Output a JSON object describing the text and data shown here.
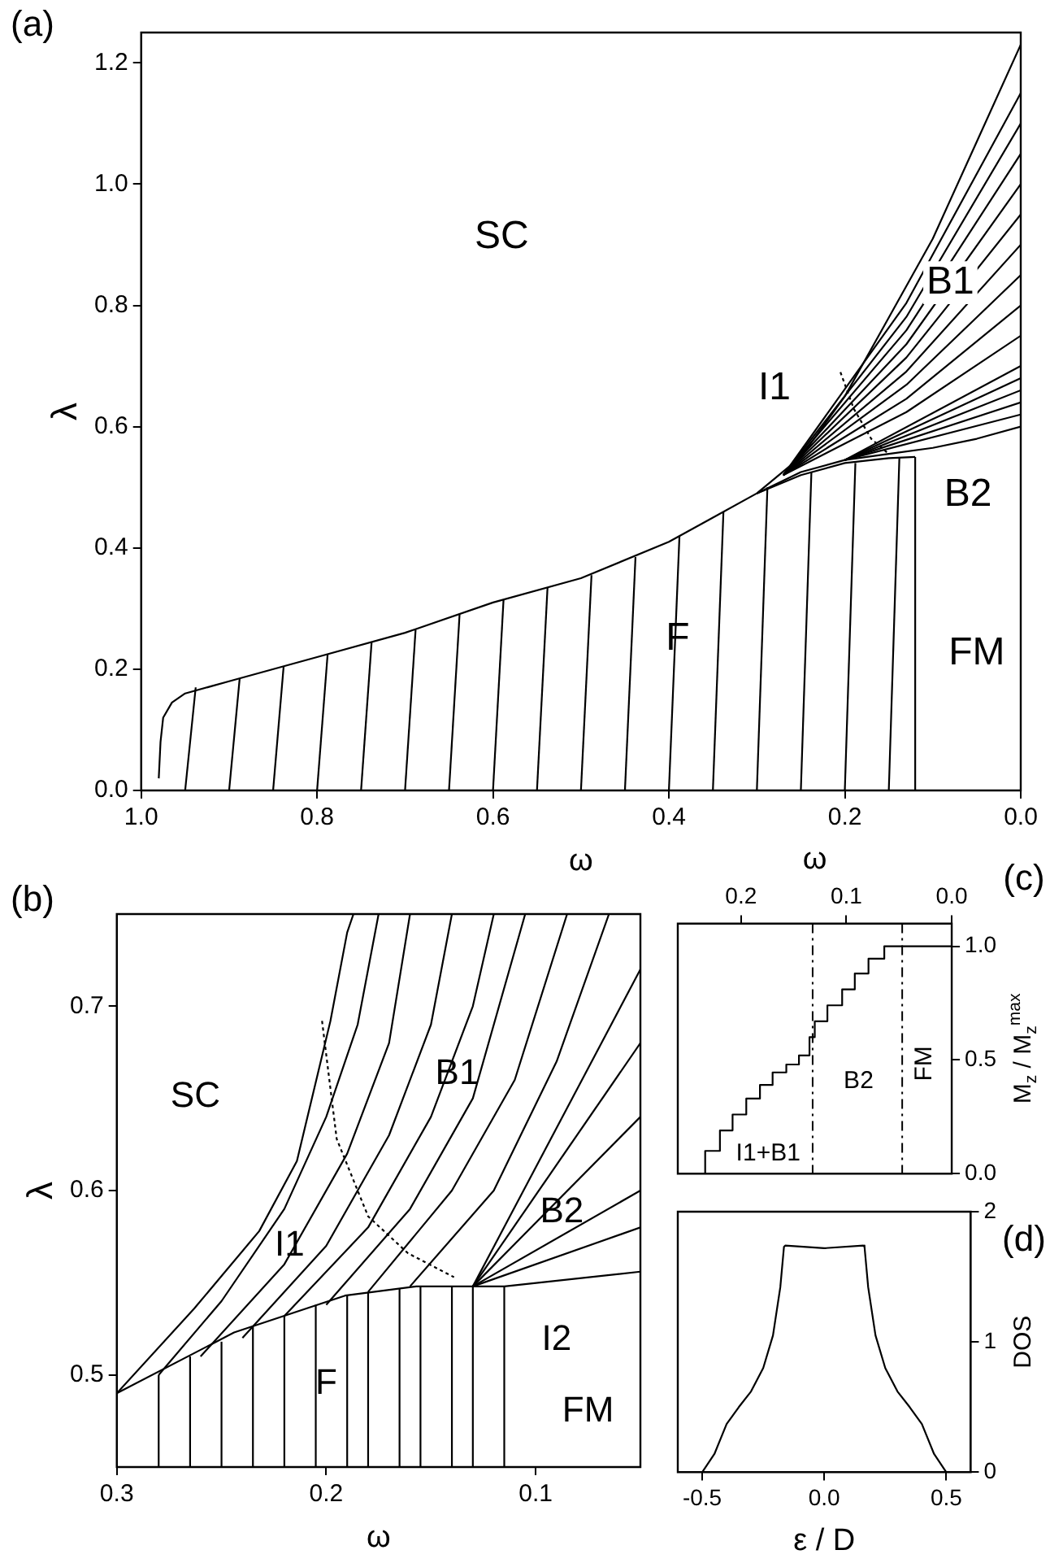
{
  "chart_data": [
    {
      "type": "line",
      "xlabel": "ω",
      "ylabel": "λ",
      "xlim": [
        1,
        0
      ],
      "ylim": [
        0,
        1.25
      ],
      "legend": false,
      "grid": false,
      "xticks": [
        {
          "value": 1,
          "label": "1.0"
        },
        {
          "value": 0.8,
          "label": "0.8"
        },
        {
          "value": 0.6,
          "label": "0.6"
        },
        {
          "value": 0.4,
          "label": "0.4"
        },
        {
          "value": 0.2,
          "label": "0.2"
        },
        {
          "value": 0,
          "label": "0.0"
        }
      ],
      "yticks": [
        {
          "value": 0,
          "label": "0.0"
        },
        {
          "value": 0.2,
          "label": "0.2"
        },
        {
          "value": 0.4,
          "label": "0.4"
        },
        {
          "value": 0.6,
          "label": "0.6"
        },
        {
          "value": 0.8,
          "label": "0.8"
        },
        {
          "value": 1,
          "label": "1.0"
        },
        {
          "value": 1.2,
          "label": "1.2"
        }
      ],
      "annotations": [
        "(a)",
        "SC",
        "B1",
        "I1",
        "B2",
        "F",
        "FM"
      ],
      "series": [
        {
          "color": "#000000",
          "x": [
            0.98,
            0.978,
            0.975,
            0.965,
            0.95,
            0.9,
            0.8,
            0.7,
            0.6,
            0.5,
            0.4,
            0.35,
            0.3,
            0.25,
            0.2,
            0.15,
            0.1,
            0.05,
            0
          ],
          "values": [
            0.02,
            0.08,
            0.12,
            0.145,
            0.16,
            0.18,
            0.22,
            0.26,
            0.31,
            0.35,
            0.41,
            0.45,
            0.49,
            0.55,
            0.65,
            0.78,
            0.91,
            1.07,
            1.23
          ]
        },
        {
          "color": "#000000",
          "x": [
            0.3,
            0.25,
            0.2,
            0.15,
            0.12
          ],
          "values": [
            0.49,
            0.52,
            0.54,
            0.548,
            0.55
          ]
        },
        {
          "color": "#000000",
          "x": [
            0.12,
            0.12
          ],
          "values": [
            0,
            0.55
          ]
        },
        {
          "color": "#000000",
          "x": [
            0.3,
            0.25,
            0.2,
            0.15,
            0.1,
            0.05,
            0
          ],
          "values": [
            0.49,
            0.525,
            0.545,
            0.555,
            0.565,
            0.58,
            0.6
          ]
        },
        {
          "color": "#000000",
          "line_style": "dotted",
          "x": [
            0.205,
            0.19,
            0.17,
            0.15
          ],
          "values": [
            0.69,
            0.63,
            0.58,
            0.555
          ]
        },
        {
          "color": "#000000",
          "x": [
            0.95,
            0.938
          ],
          "values": [
            0,
            0.17
          ]
        },
        {
          "color": "#000000",
          "x": [
            0.9,
            0.888
          ],
          "values": [
            0,
            0.185
          ]
        },
        {
          "color": "#000000",
          "x": [
            0.85,
            0.838
          ],
          "values": [
            0,
            0.205
          ]
        },
        {
          "color": "#000000",
          "x": [
            0.8,
            0.788
          ],
          "values": [
            0,
            0.225
          ]
        },
        {
          "color": "#000000",
          "x": [
            0.75,
            0.738
          ],
          "values": [
            0,
            0.245
          ]
        },
        {
          "color": "#000000",
          "x": [
            0.7,
            0.688
          ],
          "values": [
            0,
            0.265
          ]
        },
        {
          "color": "#000000",
          "x": [
            0.65,
            0.638
          ],
          "values": [
            0,
            0.29
          ]
        },
        {
          "color": "#000000",
          "x": [
            0.6,
            0.588
          ],
          "values": [
            0,
            0.315
          ]
        },
        {
          "color": "#000000",
          "x": [
            0.55,
            0.538
          ],
          "values": [
            0,
            0.335
          ]
        },
        {
          "color": "#000000",
          "x": [
            0.5,
            0.488
          ],
          "values": [
            0,
            0.355
          ]
        },
        {
          "color": "#000000",
          "x": [
            0.45,
            0.438
          ],
          "values": [
            0,
            0.385
          ]
        },
        {
          "color": "#000000",
          "x": [
            0.4,
            0.388
          ],
          "values": [
            0,
            0.42
          ]
        },
        {
          "color": "#000000",
          "x": [
            0.35,
            0.338
          ],
          "values": [
            0,
            0.46
          ]
        },
        {
          "color": "#000000",
          "x": [
            0.3,
            0.288
          ],
          "values": [
            0,
            0.5
          ]
        },
        {
          "color": "#000000",
          "x": [
            0.25,
            0.238
          ],
          "values": [
            0,
            0.525
          ]
        },
        {
          "color": "#000000",
          "x": [
            0.2,
            0.188
          ],
          "values": [
            0,
            0.54
          ]
        },
        {
          "color": "#000000",
          "x": [
            0.15,
            0.138
          ],
          "values": [
            0,
            0.548
          ]
        },
        {
          "color": "#000000",
          "x": [
            0.27,
            0.13,
            0
          ],
          "values": [
            0.52,
            0.624,
            0.75
          ]
        },
        {
          "color": "#000000",
          "x": [
            0.27,
            0.13,
            0
          ],
          "values": [
            0.52,
            0.646,
            0.8
          ]
        },
        {
          "color": "#000000",
          "x": [
            0.27,
            0.13,
            0
          ],
          "values": [
            0.52,
            0.669,
            0.85
          ]
        },
        {
          "color": "#000000",
          "x": [
            0.27,
            0.13,
            0
          ],
          "values": [
            0.52,
            0.691,
            0.9
          ]
        },
        {
          "color": "#000000",
          "x": [
            0.27,
            0.13,
            0
          ],
          "values": [
            0.52,
            0.714,
            0.95
          ]
        },
        {
          "color": "#000000",
          "x": [
            0.27,
            0.13,
            0
          ],
          "values": [
            0.52,
            0.736,
            1.0
          ]
        },
        {
          "color": "#000000",
          "x": [
            0.27,
            0.13,
            0
          ],
          "values": [
            0.52,
            0.759,
            1.05
          ]
        },
        {
          "color": "#000000",
          "x": [
            0.27,
            0.13,
            0
          ],
          "values": [
            0.52,
            0.781,
            1.1
          ]
        },
        {
          "color": "#000000",
          "x": [
            0.27,
            0.13,
            0
          ],
          "values": [
            0.52,
            0.804,
            1.15
          ]
        },
        {
          "color": "#000000",
          "x": [
            0.2,
            0
          ],
          "values": [
            0.545,
            0.62
          ]
        },
        {
          "color": "#000000",
          "x": [
            0.2,
            0
          ],
          "values": [
            0.545,
            0.64
          ]
        },
        {
          "color": "#000000",
          "x": [
            0.2,
            0
          ],
          "values": [
            0.545,
            0.66
          ]
        },
        {
          "color": "#000000",
          "x": [
            0.2,
            0
          ],
          "values": [
            0.545,
            0.68
          ]
        },
        {
          "color": "#000000",
          "x": [
            0.2,
            0
          ],
          "values": [
            0.545,
            0.7
          ]
        }
      ]
    },
    {
      "type": "line",
      "xlabel": "ω",
      "ylabel": "λ",
      "xlim": [
        0.3,
        0.05
      ],
      "ylim": [
        0.45,
        0.75
      ],
      "legend": false,
      "grid": false,
      "xticks": [
        {
          "value": 0.3,
          "label": "0.3"
        },
        {
          "value": 0.2,
          "label": "0.2"
        },
        {
          "value": 0.1,
          "label": "0.1"
        }
      ],
      "yticks": [
        {
          "value": 0.5,
          "label": "0.5"
        },
        {
          "value": 0.6,
          "label": "0.6"
        },
        {
          "value": 0.7,
          "label": "0.7"
        }
      ],
      "annotations": [
        "(b)",
        "SC",
        "B1",
        "I1",
        "B2",
        "F",
        "FM",
        "I2"
      ],
      "series": [
        {
          "color": "#000000",
          "x": [
            0.3,
            0.263,
            0.232,
            0.214,
            0.198,
            0.19,
            0.187
          ],
          "values": [
            0.49,
            0.536,
            0.578,
            0.616,
            0.692,
            0.74,
            0.75
          ]
        },
        {
          "color": "#000000",
          "x": [
            0.3,
            0.244,
            0.191,
            0.157,
            0.115,
            0.05
          ],
          "values": [
            0.49,
            0.523,
            0.543,
            0.548,
            0.548,
            0.556
          ]
        },
        {
          "color": "#000000",
          "x": [
            0.115,
            0.115
          ],
          "values": [
            0.45,
            0.548
          ]
        },
        {
          "color": "#000000",
          "line_style": "dotted",
          "x": [
            0.202,
            0.195,
            0.18,
            0.161,
            0.139
          ],
          "values": [
            0.692,
            0.628,
            0.586,
            0.566,
            0.553
          ]
        },
        {
          "color": "#000000",
          "x": [
            0.28,
            0.28
          ],
          "values": [
            0.45,
            0.5
          ]
        },
        {
          "color": "#000000",
          "x": [
            0.265,
            0.265
          ],
          "values": [
            0.45,
            0.51
          ]
        },
        {
          "color": "#000000",
          "x": [
            0.25,
            0.25
          ],
          "values": [
            0.45,
            0.518
          ]
        },
        {
          "color": "#000000",
          "x": [
            0.235,
            0.235
          ],
          "values": [
            0.45,
            0.526
          ]
        },
        {
          "color": "#000000",
          "x": [
            0.22,
            0.22
          ],
          "values": [
            0.45,
            0.532
          ]
        },
        {
          "color": "#000000",
          "x": [
            0.205,
            0.205
          ],
          "values": [
            0.45,
            0.538
          ]
        },
        {
          "color": "#000000",
          "x": [
            0.19,
            0.19
          ],
          "values": [
            0.45,
            0.543
          ]
        },
        {
          "color": "#000000",
          "x": [
            0.18,
            0.18
          ],
          "values": [
            0.45,
            0.545
          ]
        },
        {
          "color": "#000000",
          "x": [
            0.165,
            0.165
          ],
          "values": [
            0.45,
            0.547
          ]
        },
        {
          "color": "#000000",
          "x": [
            0.155,
            0.155
          ],
          "values": [
            0.45,
            0.548
          ]
        },
        {
          "color": "#000000",
          "x": [
            0.14,
            0.14
          ],
          "values": [
            0.45,
            0.548
          ]
        },
        {
          "color": "#000000",
          "x": [
            0.13,
            0.13
          ],
          "values": [
            0.45,
            0.548
          ]
        },
        {
          "color": "#000000",
          "x": [
            0.28,
            0.25,
            0.22,
            0.2,
            0.185,
            0.175
          ],
          "values": [
            0.5,
            0.54,
            0.59,
            0.64,
            0.69,
            0.75
          ]
        },
        {
          "color": "#000000",
          "x": [
            0.26,
            0.22,
            0.19,
            0.17,
            0.16
          ],
          "values": [
            0.51,
            0.56,
            0.62,
            0.68,
            0.75
          ]
        },
        {
          "color": "#000000",
          "x": [
            0.24,
            0.2,
            0.17,
            0.15,
            0.14
          ],
          "values": [
            0.52,
            0.57,
            0.63,
            0.69,
            0.75
          ]
        },
        {
          "color": "#000000",
          "x": [
            0.22,
            0.18,
            0.15,
            0.13,
            0.12
          ],
          "values": [
            0.532,
            0.58,
            0.64,
            0.7,
            0.75
          ]
        },
        {
          "color": "#000000",
          "x": [
            0.2,
            0.16,
            0.13,
            0.105
          ],
          "values": [
            0.538,
            0.59,
            0.65,
            0.75
          ]
        },
        {
          "color": "#000000",
          "x": [
            0.18,
            0.14,
            0.11,
            0.085
          ],
          "values": [
            0.545,
            0.6,
            0.66,
            0.75
          ]
        },
        {
          "color": "#000000",
          "x": [
            0.16,
            0.12,
            0.09,
            0.065
          ],
          "values": [
            0.548,
            0.6,
            0.67,
            0.75
          ]
        },
        {
          "color": "#000000",
          "x": [
            0.13,
            0.05
          ],
          "values": [
            0.548,
            0.72
          ]
        },
        {
          "color": "#000000",
          "x": [
            0.13,
            0.05
          ],
          "values": [
            0.548,
            0.68
          ]
        },
        {
          "color": "#000000",
          "x": [
            0.13,
            0.05
          ],
          "values": [
            0.548,
            0.64
          ]
        },
        {
          "color": "#000000",
          "x": [
            0.13,
            0.05
          ],
          "values": [
            0.548,
            0.6
          ]
        },
        {
          "color": "#000000",
          "x": [
            0.13,
            0.05
          ],
          "values": [
            0.548,
            0.58
          ]
        }
      ]
    },
    {
      "type": "step",
      "xlabel": "ω",
      "ylabel": "M$_{z}$ / M$_{z}$$^{max}$",
      "xlim": [
        0.26,
        0
      ],
      "ylim": [
        0,
        1.1
      ],
      "legend": false,
      "grid": false,
      "xticks": [
        {
          "value": 0.2,
          "label": "0.2"
        },
        {
          "value": 0.1,
          "label": "0.1"
        },
        {
          "value": 0,
          "label": "0.0"
        }
      ],
      "yticks": [
        {
          "value": 0,
          "label": "0.0"
        },
        {
          "value": 0.5,
          "label": "0.5"
        },
        {
          "value": 1,
          "label": "1.0"
        }
      ],
      "annotations": [
        "(c)",
        "I1+B1",
        "B2",
        "FM"
      ],
      "ref_lines": [
        {
          "axis": "x",
          "value": 0.132,
          "line_style": "dashed",
          "color": "#000000"
        },
        {
          "axis": "x",
          "value": 0.047,
          "line_style": "dashed",
          "color": "#000000"
        }
      ],
      "series": [
        {
          "color": "#000000",
          "x": [
            0.234,
            0.22,
            0.208,
            0.195,
            0.182,
            0.17,
            0.157,
            0.145,
            0.135,
            0.13,
            0.118,
            0.104,
            0.092,
            0.079,
            0.064,
            0.05,
            0
          ],
          "values": [
            0,
            0.1,
            0.19,
            0.26,
            0.33,
            0.39,
            0.445,
            0.48,
            0.52,
            0.6,
            0.67,
            0.74,
            0.81,
            0.88,
            0.945,
            1,
            1
          ]
        }
      ]
    },
    {
      "type": "line",
      "xlabel": "ε / D",
      "ylabel": "DOS",
      "xlim": [
        -0.6,
        0.6
      ],
      "ylim": [
        0,
        2
      ],
      "legend": false,
      "grid": false,
      "xticks": [
        -0.5,
        {
          "value": 0,
          "label": "0.0"
        },
        0.5
      ],
      "yticks": [
        0,
        1,
        2
      ],
      "annotations": [
        "(d)"
      ],
      "series": [
        {
          "color": "#000000",
          "x": [
            -0.5,
            -0.45,
            -0.4,
            -0.35,
            -0.3,
            -0.25,
            -0.21,
            -0.18,
            -0.165,
            -0.16,
            0,
            0.16,
            0.165,
            0.18,
            0.21,
            0.25,
            0.3,
            0.35,
            0.4,
            0.45,
            0.5
          ],
          "values": [
            0,
            0.14,
            0.37,
            0.5,
            0.62,
            0.8,
            1.05,
            1.42,
            1.73,
            1.74,
            1.72,
            1.74,
            1.73,
            1.42,
            1.05,
            0.8,
            0.62,
            0.5,
            0.37,
            0.14,
            0
          ]
        }
      ]
    }
  ]
}
